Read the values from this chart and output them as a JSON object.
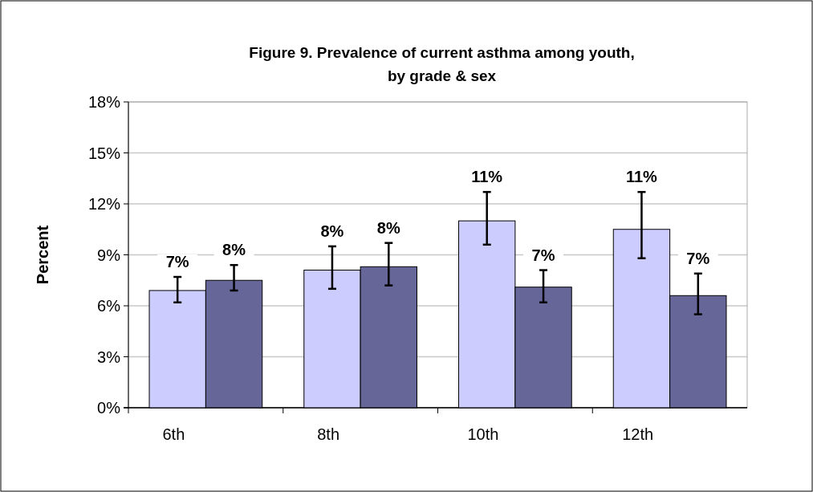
{
  "chart_data": {
    "type": "bar",
    "title": "Figure 9. Prevalence of current asthma among youth, by grade & sex",
    "ylabel": "Percent",
    "categories": [
      "6th",
      "8th",
      "10th",
      "12th"
    ],
    "series": [
      {
        "color": "#ccccff",
        "values": [
          6.9,
          8.1,
          11.0,
          10.5
        ],
        "errors": [
          [
            6.2,
            7.7
          ],
          [
            7.0,
            9.5
          ],
          [
            9.6,
            12.7
          ],
          [
            8.8,
            12.7
          ]
        ],
        "value_labels": [
          "7%",
          "8%",
          "11%",
          "11%"
        ]
      },
      {
        "color": "#666699",
        "values": [
          7.5,
          8.3,
          7.1,
          6.6
        ],
        "errors": [
          [
            6.9,
            8.4
          ],
          [
            7.2,
            9.7
          ],
          [
            6.2,
            8.1
          ],
          [
            5.5,
            7.9
          ]
        ],
        "value_labels": [
          "8%",
          "8%",
          "7%",
          "7%"
        ]
      }
    ],
    "ylim": [
      0,
      18
    ],
    "yticks": [
      {
        "value": 0,
        "label": "0%"
      },
      {
        "value": 3,
        "label": "3%"
      },
      {
        "value": 6,
        "label": "6%"
      },
      {
        "value": 9,
        "label": "9%"
      },
      {
        "value": 12,
        "label": "12%"
      },
      {
        "value": 15,
        "label": "15%"
      },
      {
        "value": 18,
        "label": "18%"
      }
    ],
    "grid": "y"
  }
}
